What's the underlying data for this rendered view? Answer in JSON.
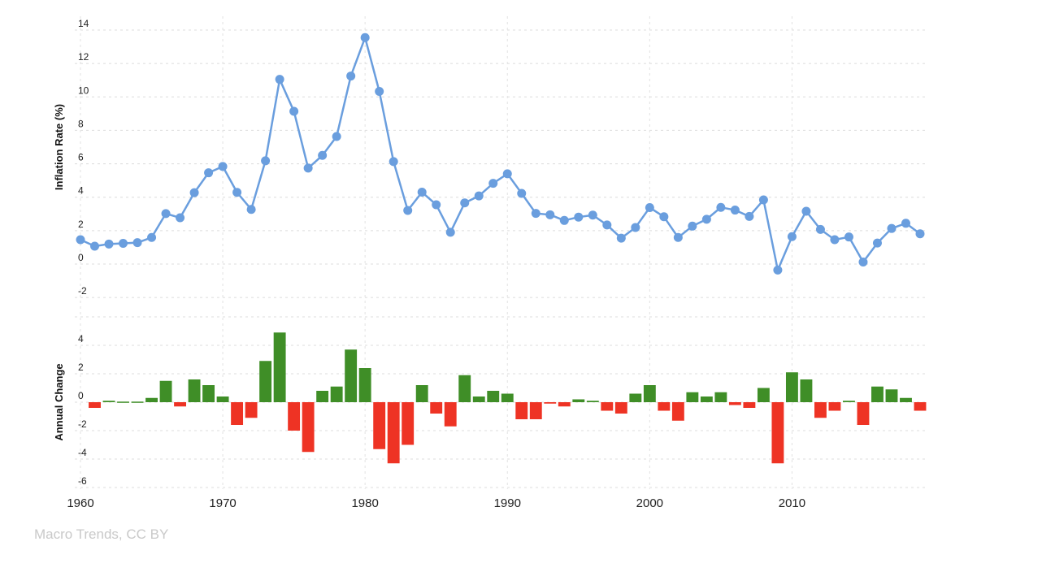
{
  "credit": "Macro Trends, CC BY",
  "colors": {
    "line": "#6a9ede",
    "positive": "#3f8e27",
    "negative": "#ee3324"
  },
  "chart_data": [
    {
      "type": "line",
      "ylabel": "Inflation Rate (%)",
      "yticks": [
        14,
        12,
        10,
        8,
        6,
        4,
        2,
        0,
        -2
      ],
      "ylim": [
        -2,
        14
      ],
      "xlim": [
        1960,
        2019
      ],
      "x": [
        1960,
        1961,
        1962,
        1963,
        1964,
        1965,
        1966,
        1967,
        1968,
        1969,
        1970,
        1971,
        1972,
        1973,
        1974,
        1975,
        1976,
        1977,
        1978,
        1979,
        1980,
        1981,
        1982,
        1983,
        1984,
        1985,
        1986,
        1987,
        1988,
        1989,
        1990,
        1991,
        1992,
        1993,
        1994,
        1995,
        1996,
        1997,
        1998,
        1999,
        2000,
        2001,
        2002,
        2003,
        2004,
        2005,
        2006,
        2007,
        2008,
        2009,
        2010,
        2011,
        2012,
        2013,
        2014,
        2015,
        2016,
        2017,
        2018,
        2019
      ],
      "values": [
        1.46,
        1.07,
        1.2,
        1.24,
        1.28,
        1.59,
        3.02,
        2.77,
        4.27,
        5.46,
        5.84,
        4.29,
        3.27,
        6.18,
        11.05,
        9.14,
        5.74,
        6.5,
        7.63,
        11.25,
        13.55,
        10.33,
        6.13,
        3.21,
        4.3,
        3.55,
        1.9,
        3.66,
        4.08,
        4.83,
        5.4,
        4.23,
        3.03,
        2.95,
        2.61,
        2.81,
        2.93,
        2.34,
        1.55,
        2.19,
        3.38,
        2.83,
        1.59,
        2.27,
        2.68,
        3.39,
        3.23,
        2.85,
        3.84,
        -0.36,
        1.64,
        3.16,
        2.07,
        1.46,
        1.62,
        0.12,
        1.26,
        2.13,
        2.44,
        1.81
      ]
    },
    {
      "type": "bar",
      "ylabel": "Annual Change",
      "yticks": [
        4,
        2,
        0,
        -2,
        -4,
        -6
      ],
      "ylim": [
        -6,
        5
      ],
      "x": [
        1961,
        1962,
        1963,
        1964,
        1965,
        1966,
        1967,
        1968,
        1969,
        1970,
        1971,
        1972,
        1973,
        1974,
        1975,
        1976,
        1977,
        1978,
        1979,
        1980,
        1981,
        1982,
        1983,
        1984,
        1985,
        1986,
        1987,
        1988,
        1989,
        1990,
        1991,
        1992,
        1993,
        1994,
        1995,
        1996,
        1997,
        1998,
        1999,
        2000,
        2001,
        2002,
        2003,
        2004,
        2005,
        2006,
        2007,
        2008,
        2009,
        2010,
        2011,
        2012,
        2013,
        2014,
        2015,
        2016,
        2017,
        2018,
        2019
      ],
      "values": [
        -0.4,
        0.1,
        0.04,
        0.04,
        0.3,
        1.5,
        -0.3,
        1.6,
        1.2,
        0.4,
        -1.6,
        -1.1,
        2.9,
        4.9,
        -2.0,
        -3.5,
        0.8,
        1.1,
        3.7,
        2.4,
        -3.3,
        -4.3,
        -3.0,
        1.2,
        -0.8,
        -1.7,
        1.9,
        0.4,
        0.8,
        0.6,
        -1.2,
        -1.2,
        -0.1,
        -0.3,
        0.2,
        0.1,
        -0.6,
        -0.8,
        0.6,
        1.2,
        -0.6,
        -1.3,
        0.7,
        0.4,
        0.7,
        -0.2,
        -0.4,
        1.0,
        -4.3,
        2.1,
        1.6,
        -1.1,
        -0.6,
        0.1,
        -1.6,
        1.1,
        0.9,
        0.3,
        -0.6
      ]
    }
  ],
  "xticks": [
    1960,
    1970,
    1980,
    1990,
    2000,
    2010
  ]
}
